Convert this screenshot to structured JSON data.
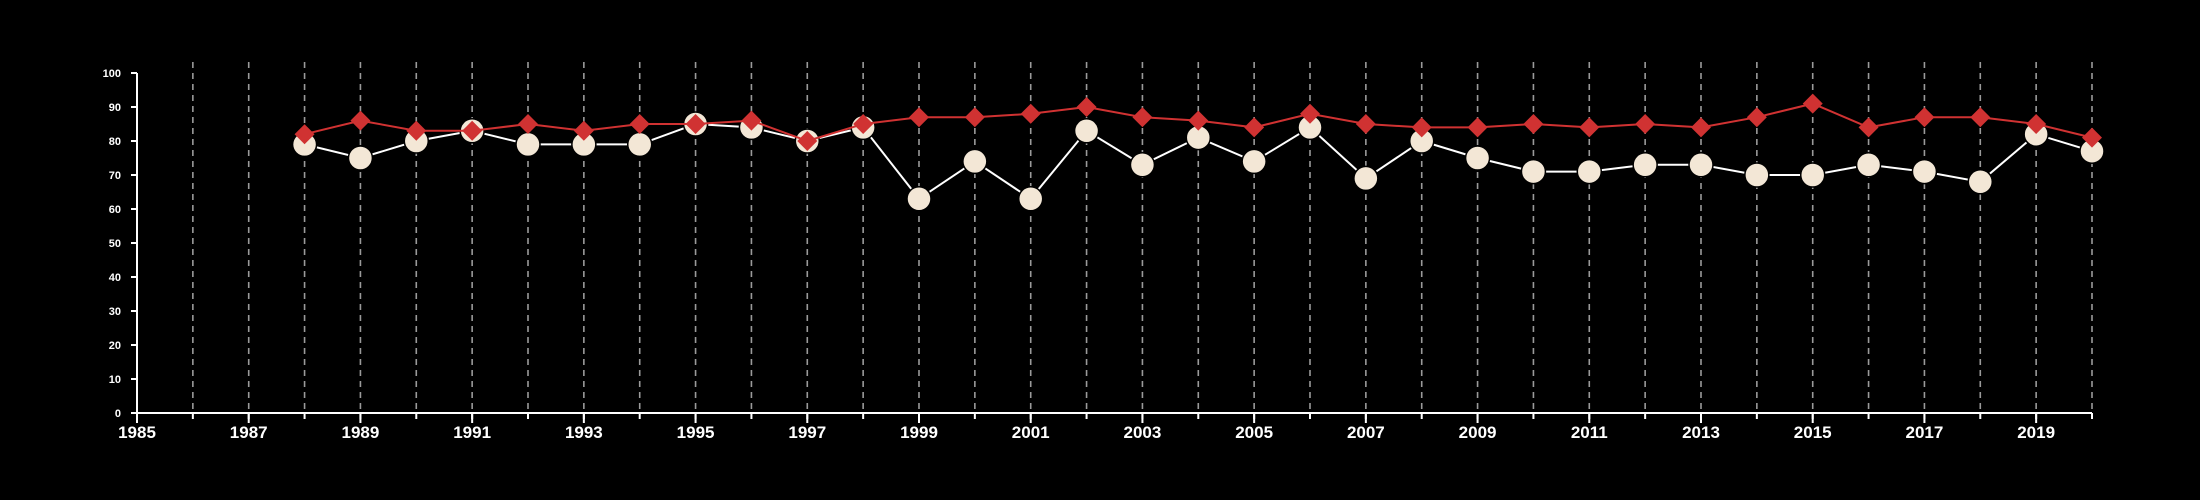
{
  "chart_data": {
    "type": "line",
    "title": "",
    "xlabel": "",
    "ylabel": "",
    "xlim": [
      1985,
      2020
    ],
    "ylim": [
      0,
      100
    ],
    "x_ticks": [
      1985,
      1987,
      1989,
      1991,
      1993,
      1995,
      1997,
      1999,
      2001,
      2003,
      2005,
      2007,
      2009,
      2011,
      2013,
      2015,
      2017,
      2019
    ],
    "y_ticks": [
      0,
      10,
      20,
      30,
      40,
      50,
      60,
      70,
      80,
      90,
      100
    ],
    "grid": "vertical dashed at every year",
    "legend": "none",
    "x": [
      1988,
      1989,
      1990,
      1991,
      1992,
      1993,
      1994,
      1995,
      1996,
      1997,
      1998,
      1999,
      2000,
      2001,
      2002,
      2003,
      2004,
      2005,
      2006,
      2007,
      2008,
      2009,
      2010,
      2011,
      2012,
      2013,
      2014,
      2015,
      2016,
      2017,
      2018,
      2019,
      2020
    ],
    "series": [
      {
        "marker": "diamond",
        "color": "#d03232",
        "values": [
          82,
          86,
          83,
          83,
          85,
          83,
          85,
          85,
          86,
          80,
          85,
          87,
          87,
          88,
          90,
          87,
          86,
          84,
          88,
          85,
          84,
          84,
          85,
          84,
          85,
          84,
          87,
          91,
          84,
          87,
          87,
          85,
          81
        ]
      },
      {
        "marker": "circle",
        "color": "#ffffff",
        "fill": "#f3e7d6",
        "values": [
          79,
          75,
          80,
          83,
          79,
          79,
          79,
          85,
          84,
          80,
          84,
          63,
          74,
          63,
          83,
          73,
          81,
          74,
          84,
          69,
          80,
          75,
          71,
          71,
          73,
          73,
          70,
          70,
          73,
          71,
          68,
          82,
          77
        ]
      }
    ]
  }
}
